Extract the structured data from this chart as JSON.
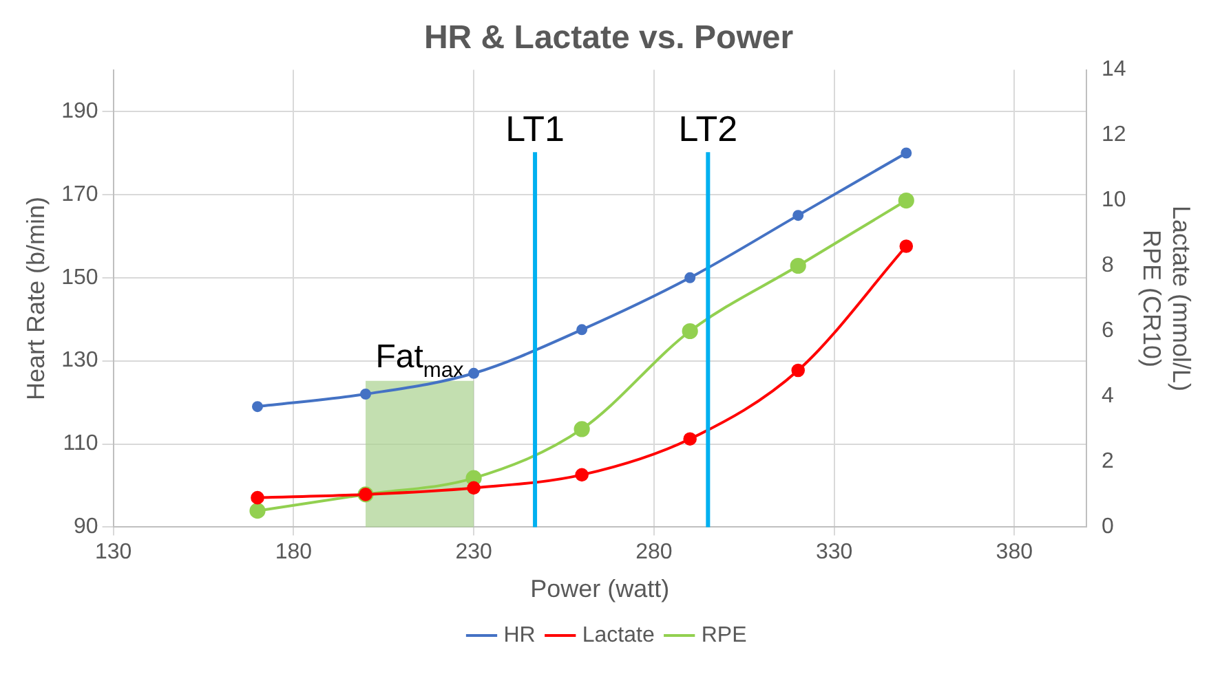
{
  "chart_data": {
    "type": "line",
    "title": "HR & Lactate vs. Power",
    "xlabel": "Power (watt)",
    "ylabel": "Heart Rate (b/min)",
    "y2label": "Lactate (mmol/L)\nRPE (CR10)",
    "x": [
      170,
      200,
      230,
      260,
      290,
      320,
      350
    ],
    "series": [
      {
        "name": "HR",
        "color": "#4472c4",
        "values": [
          119,
          122,
          127,
          137.5,
          150,
          165,
          180
        ]
      },
      {
        "name": "Lactate",
        "color": "#ff0000",
        "axis": "y2",
        "values": [
          0.9,
          1.0,
          1.2,
          1.6,
          2.7,
          4.8,
          8.6
        ]
      },
      {
        "name": "RPE",
        "color": "#92d050",
        "axis": "y2",
        "values": [
          0.5,
          1.0,
          1.5,
          3.0,
          6.0,
          8.0,
          10.0
        ]
      }
    ],
    "xlim": [
      130,
      400
    ],
    "xticks": [
      130,
      180,
      230,
      280,
      330,
      380
    ],
    "ylim": [
      90,
      200
    ],
    "yticks": [
      90,
      110,
      130,
      150,
      170,
      190
    ],
    "y2lim": [
      0,
      14
    ],
    "y2ticks": [
      0,
      2,
      4,
      6,
      8,
      10,
      12,
      14
    ],
    "ref_lines": [
      {
        "axis": "x",
        "value": 247,
        "label": "LT1",
        "color": "#00b0f0"
      },
      {
        "axis": "x",
        "value": 295,
        "label": "LT2",
        "color": "#00b0f0"
      }
    ],
    "bands": [
      {
        "axis": "x",
        "from": 200,
        "to": 230,
        "label": "Fat$_{max}$",
        "color": "#a9d18e"
      }
    ],
    "grid": true,
    "legend": "bottom",
    "marker": "circle",
    "line_style": "solid"
  }
}
